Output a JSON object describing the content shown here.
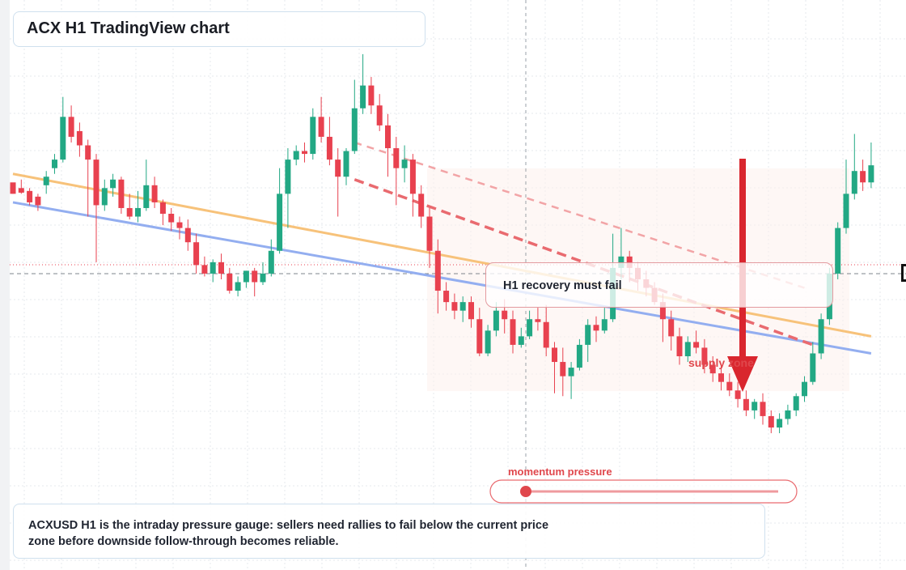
{
  "header": {
    "title": "ACX H1 TradingView chart"
  },
  "description": {
    "text": "ACXUSD H1 is the intraday pressure gauge: sellers need rallies to fail below the current price zone before downside follow-through becomes reliable."
  },
  "annotations": {
    "recovery_label": "H1 recovery must fail",
    "supply_label": "supply zone",
    "momentum_label": "momentum pressure",
    "momentum_level": 0.13
  },
  "colors": {
    "bull": "#22a884",
    "bear": "#e8414f",
    "trend_orange": "#f7c27a",
    "trend_blue": "#93aef0",
    "resistance_dashed": "#e96a6f",
    "arrow": "#d9262e",
    "grid": "#e4e8ee"
  },
  "chart_data": {
    "type": "candlestick",
    "title": "ACX H1 TradingView chart",
    "ylim": [
      0,
      100
    ],
    "current_price_level": 52.0,
    "candles": [
      [
        68.0,
        66.0,
        67.5,
        66.0
      ],
      [
        67.0,
        66.2,
        68.5,
        66.0
      ],
      [
        66.5,
        64.5,
        67.0,
        64.0
      ],
      [
        65.5,
        64.0,
        66.0,
        63.0
      ],
      [
        67.5,
        69.0,
        70.0,
        66.0
      ],
      [
        70.5,
        72.0,
        73.0,
        69.5
      ],
      [
        72.0,
        79.5,
        83.0,
        71.5
      ],
      [
        79.5,
        76.0,
        81.5,
        75.0
      ],
      [
        77.0,
        74.5,
        78.5,
        72.5
      ],
      [
        74.5,
        72.0,
        75.5,
        62.0
      ],
      [
        72.0,
        64.0,
        73.0,
        54.0
      ],
      [
        64.0,
        67.0,
        68.5,
        63.0
      ],
      [
        67.0,
        68.5,
        69.5,
        65.5
      ],
      [
        68.5,
        63.5,
        69.0,
        62.5
      ],
      [
        63.5,
        62.0,
        66.0,
        61.5
      ],
      [
        62.0,
        63.5,
        66.5,
        61.0
      ],
      [
        63.5,
        67.5,
        72.0,
        63.0
      ],
      [
        67.5,
        64.5,
        69.0,
        63.5
      ],
      [
        64.5,
        62.5,
        65.0,
        60.5
      ],
      [
        62.5,
        61.0,
        63.5,
        59.5
      ],
      [
        61.0,
        60.0,
        62.0,
        58.0
      ],
      [
        60.0,
        57.5,
        61.5,
        56.0
      ],
      [
        57.5,
        53.5,
        59.0,
        52.0
      ],
      [
        53.5,
        52.0,
        55.0,
        51.5
      ],
      [
        52.0,
        54.0,
        54.5,
        50.5
      ],
      [
        54.0,
        52.0,
        55.5,
        51.0
      ],
      [
        52.0,
        49.0,
        53.0,
        48.5
      ],
      [
        49.0,
        50.5,
        51.5,
        48.0
      ],
      [
        50.5,
        52.5,
        52.5,
        49.5
      ],
      [
        52.5,
        50.5,
        53.0,
        48.0
      ],
      [
        50.5,
        52.0,
        54.0,
        50.0
      ],
      [
        52.0,
        56.0,
        58.0,
        51.5
      ],
      [
        56.0,
        66.0,
        70.5,
        55.5
      ],
      [
        66.0,
        72.0,
        74.0,
        60.0
      ],
      [
        72.0,
        73.5,
        74.5,
        71.0
      ],
      [
        73.5,
        73.0,
        75.0,
        71.5
      ],
      [
        73.0,
        79.5,
        81.0,
        72.0
      ],
      [
        79.5,
        76.0,
        83.0,
        75.0
      ],
      [
        76.0,
        72.0,
        79.5,
        71.0
      ],
      [
        72.0,
        69.0,
        74.0,
        62.0
      ],
      [
        69.0,
        73.5,
        74.0,
        67.5
      ],
      [
        73.5,
        81.0,
        86.0,
        73.0
      ],
      [
        81.0,
        85.0,
        90.5,
        80.0
      ],
      [
        85.0,
        81.5,
        86.5,
        80.0
      ],
      [
        81.5,
        78.0,
        83.5,
        77.0
      ],
      [
        78.0,
        74.0,
        80.0,
        69.0
      ],
      [
        74.0,
        70.5,
        76.0,
        64.0
      ],
      [
        70.5,
        72.0,
        74.5,
        68.0
      ],
      [
        72.0,
        66.0,
        73.0,
        62.0
      ],
      [
        66.0,
        62.0,
        67.5,
        60.0
      ],
      [
        62.0,
        56.0,
        63.5,
        53.0
      ],
      [
        56.0,
        49.0,
        58.0,
        45.0
      ],
      [
        49.0,
        47.0,
        50.5,
        45.5
      ],
      [
        47.0,
        45.5,
        48.5,
        44.0
      ],
      [
        45.5,
        47.0,
        48.0,
        43.5
      ],
      [
        47.0,
        44.0,
        48.0,
        42.5
      ],
      [
        44.0,
        38.0,
        46.0,
        37.5
      ],
      [
        38.0,
        42.0,
        43.0,
        37.5
      ],
      [
        42.0,
        45.5,
        47.0,
        41.0
      ],
      [
        45.5,
        44.0,
        47.5,
        41.5
      ],
      [
        44.0,
        39.5,
        45.5,
        38.0
      ],
      [
        39.5,
        41.0,
        42.5,
        39.0
      ],
      [
        41.0,
        44.0,
        45.5,
        40.5
      ],
      [
        44.0,
        43.5,
        46.0,
        42.0
      ],
      [
        43.5,
        39.0,
        46.5,
        37.5
      ],
      [
        39.0,
        36.5,
        40.0,
        31.0
      ],
      [
        36.5,
        34.0,
        39.0,
        30.5
      ],
      [
        34.0,
        35.5,
        36.5,
        30.0
      ],
      [
        35.5,
        39.5,
        40.5,
        35.0
      ],
      [
        39.5,
        43.0,
        44.0,
        36.5
      ],
      [
        43.0,
        42.0,
        44.5,
        40.0
      ],
      [
        42.0,
        44.0,
        46.0,
        41.5
      ],
      [
        44.0,
        53.0,
        59.0,
        43.5
      ],
      [
        53.0,
        55.0,
        60.0,
        51.0
      ],
      [
        55.0,
        53.0,
        56.0,
        50.5
      ],
      [
        53.0,
        51.0,
        54.0,
        49.0
      ],
      [
        51.0,
        49.5,
        52.5,
        48.0
      ],
      [
        49.5,
        47.0,
        50.5,
        46.5
      ],
      [
        47.0,
        44.0,
        48.5,
        40.0
      ],
      [
        44.0,
        41.0,
        45.5,
        38.5
      ],
      [
        41.0,
        37.5,
        42.5,
        36.0
      ],
      [
        37.5,
        40.0,
        41.0,
        36.5
      ],
      [
        40.0,
        39.0,
        42.0,
        38.0
      ],
      [
        39.0,
        36.0,
        40.5,
        34.5
      ],
      [
        36.0,
        34.5,
        37.5,
        33.0
      ],
      [
        34.5,
        33.0,
        36.0,
        31.5
      ],
      [
        33.0,
        31.5,
        34.5,
        30.5
      ],
      [
        31.5,
        30.0,
        33.0,
        28.5
      ],
      [
        30.0,
        28.0,
        31.5,
        27.0
      ],
      [
        28.0,
        29.5,
        30.0,
        26.5
      ],
      [
        29.5,
        27.0,
        31.0,
        25.5
      ],
      [
        27.0,
        25.0,
        28.0,
        24.0
      ],
      [
        25.0,
        26.5,
        27.5,
        24.0
      ],
      [
        26.5,
        28.0,
        29.0,
        25.5
      ],
      [
        28.0,
        30.5,
        31.0,
        27.0
      ],
      [
        30.5,
        33.0,
        34.0,
        29.5
      ],
      [
        33.0,
        38.0,
        40.0,
        32.5
      ],
      [
        38.0,
        44.0,
        45.0,
        37.0
      ],
      [
        44.0,
        52.0,
        53.0,
        43.0
      ],
      [
        52.0,
        60.0,
        61.0,
        51.0
      ],
      [
        60.0,
        66.0,
        72.0,
        59.0
      ],
      [
        66.0,
        70.0,
        76.5,
        65.0
      ],
      [
        70.0,
        68.0,
        72.0,
        66.5
      ],
      [
        68.0,
        71.0,
        75.0,
        67.0
      ]
    ],
    "trendlines": [
      {
        "name": "orange",
        "from": [
          0,
          69.5
        ],
        "to": [
          103,
          41.0
        ]
      },
      {
        "name": "blue",
        "from": [
          0,
          64.5
        ],
        "to": [
          103,
          38.0
        ]
      },
      {
        "name": "resistance-upper-dashed",
        "from": [
          41,
          75.0
        ],
        "to": [
          95,
          49.5
        ]
      },
      {
        "name": "resistance-lower-dashed",
        "from": [
          41,
          68.5
        ],
        "to": [
          96,
          39.5
        ]
      }
    ]
  }
}
